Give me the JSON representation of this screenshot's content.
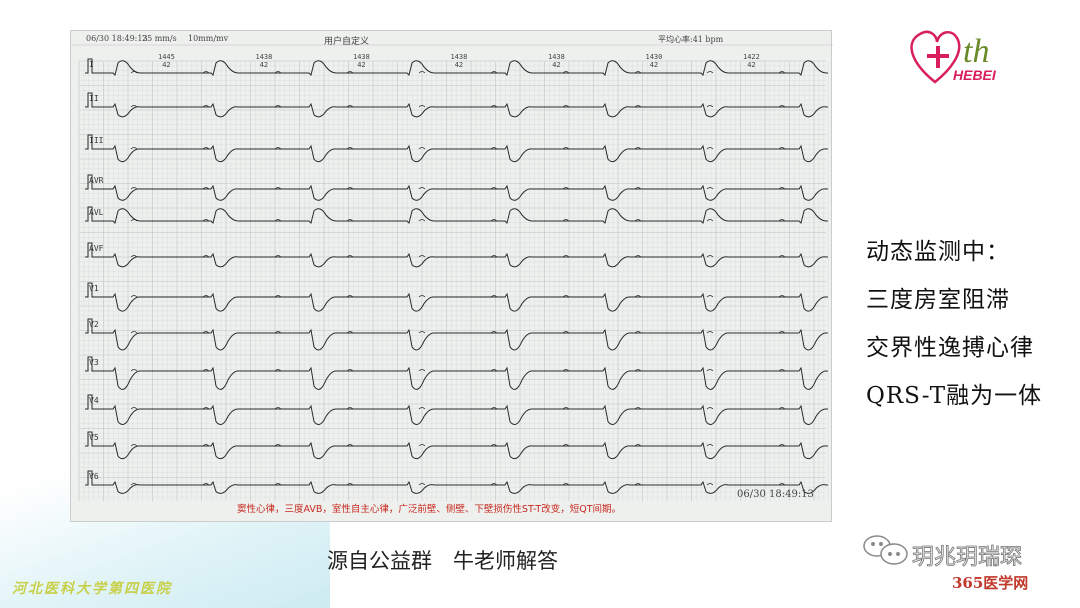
{
  "ecg": {
    "datetime": "06/30 18:49:13",
    "speed": "25 mm/s",
    "gain": "10mm/mv",
    "mode": "用户自定义",
    "avg_hr": "平均心率:41 bpm",
    "leads": [
      "I",
      "II",
      "III",
      "AVR",
      "AVL",
      "AVF",
      "V1",
      "V2",
      "V3",
      "V4",
      "V5",
      "V6"
    ],
    "rr_intervals": [
      {
        "ms": "1445",
        "hr": "42"
      },
      {
        "ms": "1438",
        "hr": "42"
      },
      {
        "ms": "1438",
        "hr": "42"
      },
      {
        "ms": "1438",
        "hr": "42"
      },
      {
        "ms": "1438",
        "hr": "42"
      },
      {
        "ms": "1430",
        "hr": "42"
      },
      {
        "ms": "1422",
        "hr": "42"
      }
    ],
    "end_datetime": "06/30 18:49:13",
    "diagnosis": "窦性心律，三度AVB，室性自主心律，广泛前壁、侧壁、下壁损伤性ST-T改变，短QT间期。",
    "grid_color": "#c9cfcf",
    "trace_color": "#2a2a2a"
  },
  "side_notes": [
    "动态监测中：",
    "三度房室阻滞",
    "交界性逸搏心律",
    "QRS-T融为一体"
  ],
  "caption": "源自公益群　牛老师解答",
  "hospital": "河北医科大学第四医院",
  "logo": {
    "text": "th",
    "sub": "HEBEI",
    "color": "#d81e5b"
  },
  "wechat": {
    "account": "玥兆玥瑞琛",
    "site": "365医学网",
    "url": "www.365yixue.com"
  }
}
